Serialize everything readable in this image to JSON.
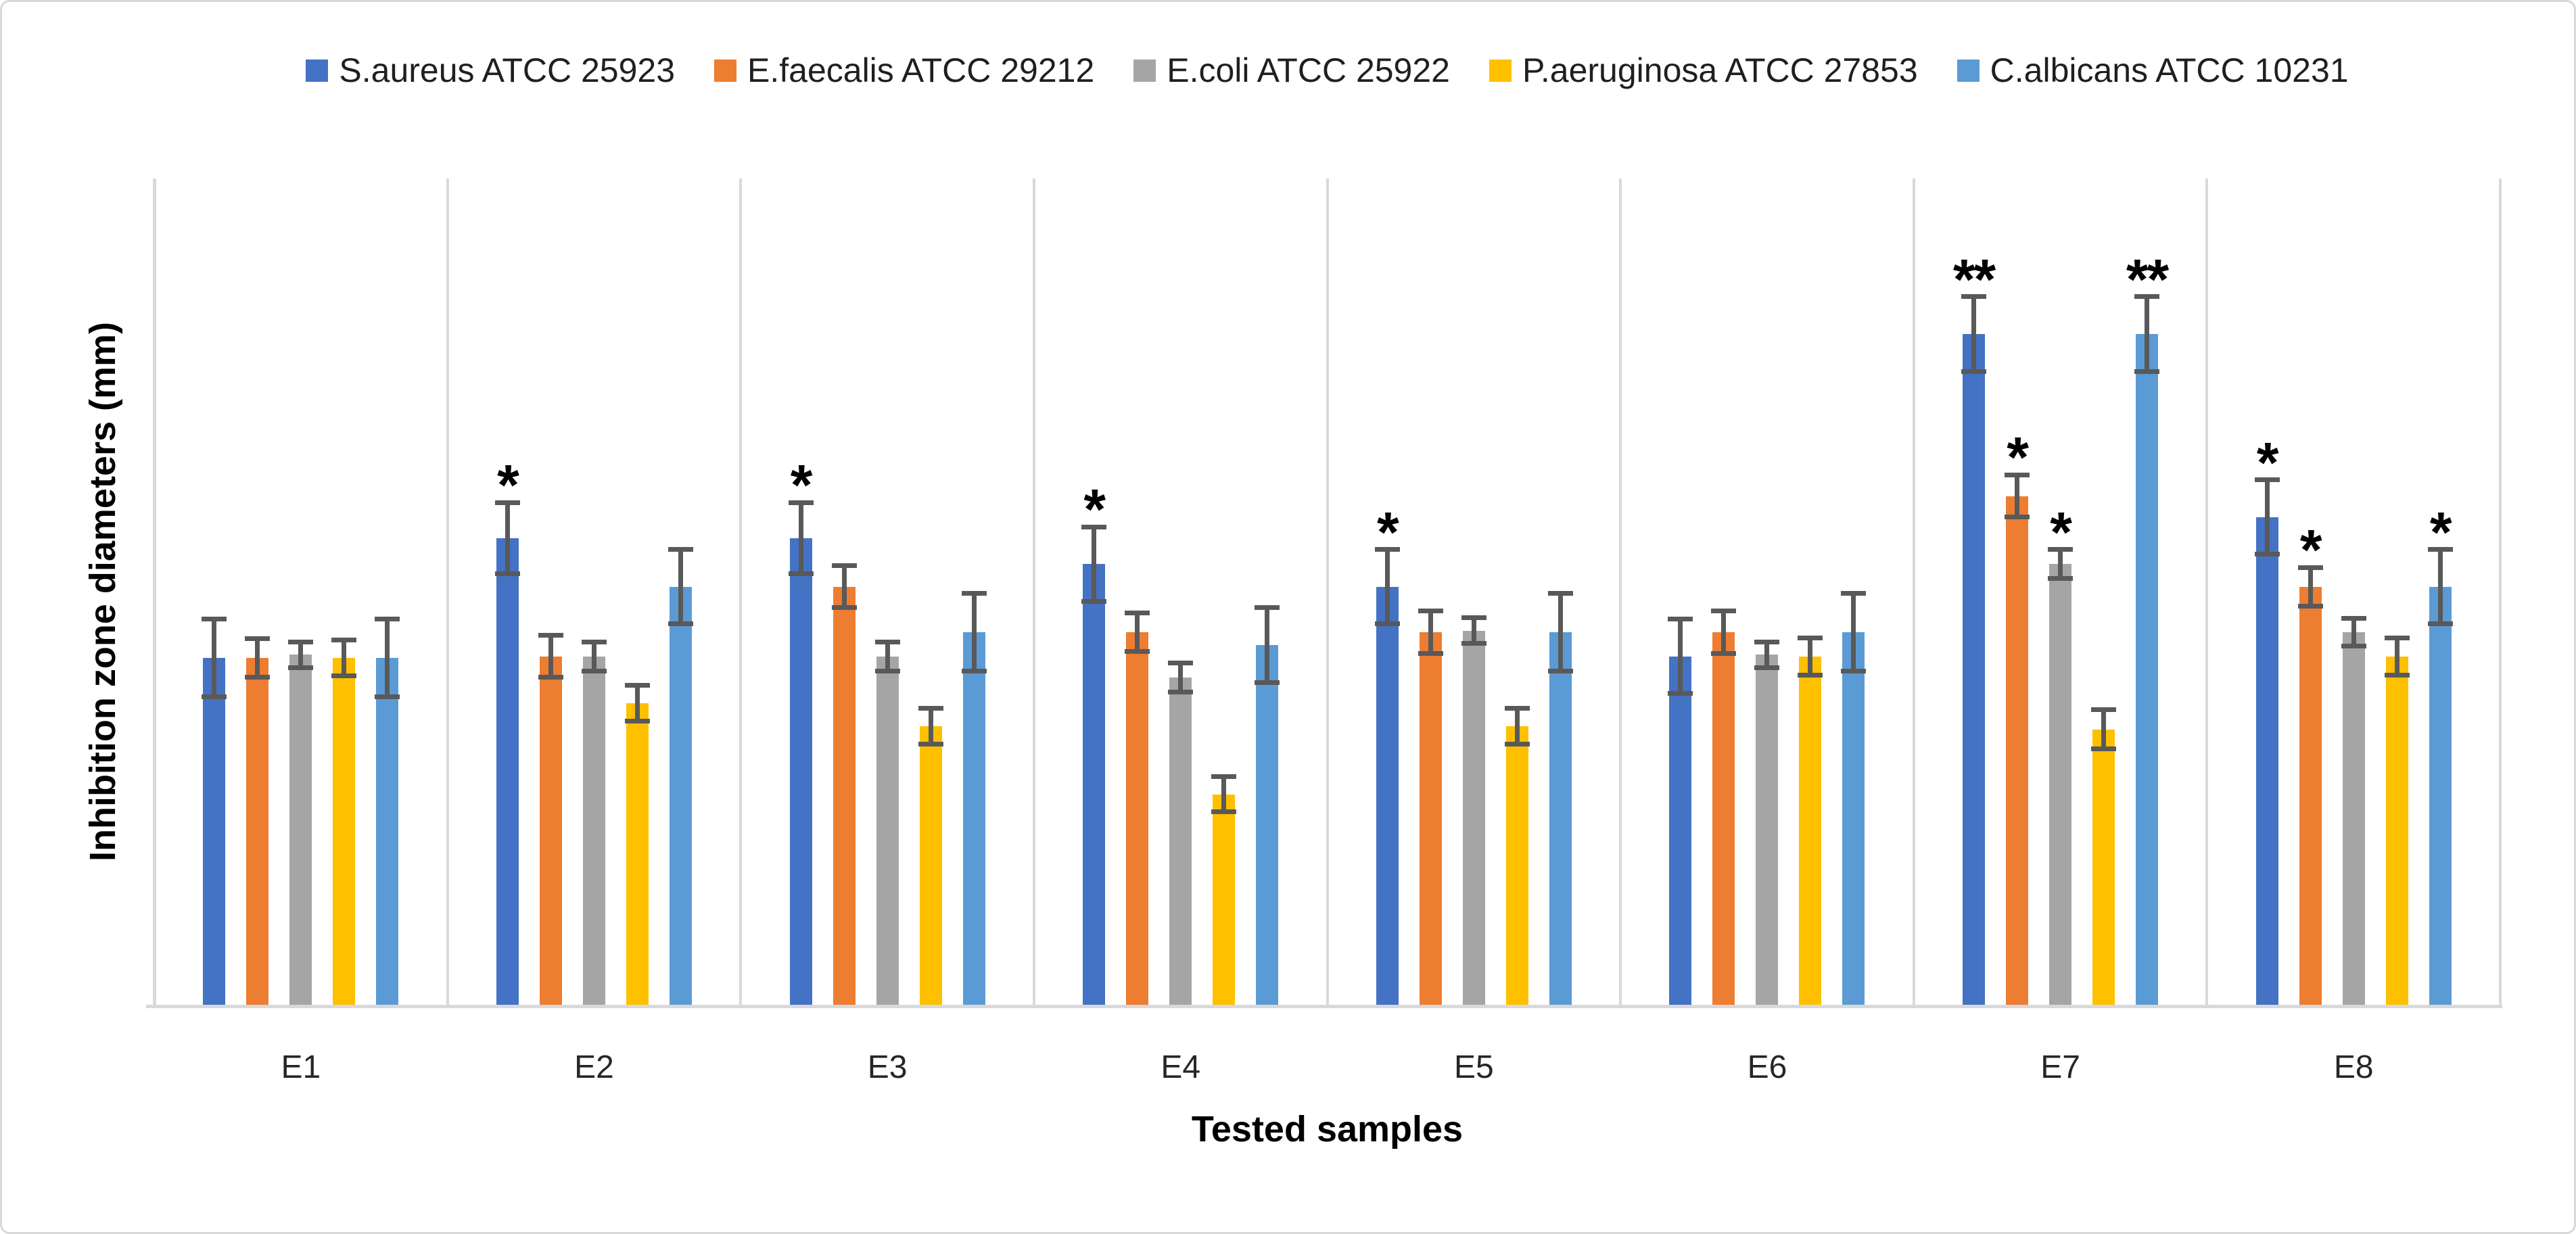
{
  "figure": {
    "background": "#FFFFFF",
    "border_color": "#D9D9D9"
  },
  "chart_data": {
    "type": "bar",
    "title": "",
    "xlabel": "Tested samples",
    "ylabel": "Inhibition zone diameters (mm)",
    "ylim": [
      0,
      25.5
    ],
    "y_tick_labels_visible": false,
    "grid": "vertical category dividers only",
    "legend_position": "top",
    "error_bars": true,
    "error_bar_color": "#595959",
    "axis_line_color": "#D9D9D9",
    "significance_marks": [
      "*",
      "**"
    ],
    "categories": [
      "E1",
      "E2",
      "E3",
      "E4",
      "E5",
      "E6",
      "E7",
      "E8"
    ],
    "series": [
      {
        "name": "S.aureus ATCC 25923",
        "color": "#4472C4",
        "values": [
          10.7,
          14.4,
          14.4,
          13.6,
          12.9,
          10.75,
          20.7,
          15.05
        ],
        "errors": [
          1.2,
          1.1,
          1.1,
          1.15,
          1.15,
          1.15,
          1.15,
          1.15
        ],
        "sig": [
          "",
          "*",
          "*",
          "*",
          "*",
          "",
          "**",
          "*"
        ]
      },
      {
        "name": "E.faecalis ATCC 29212",
        "color": "#ED7D31",
        "values": [
          10.7,
          10.75,
          12.9,
          11.5,
          11.5,
          11.5,
          15.7,
          12.9
        ],
        "errors": [
          0.6,
          0.65,
          0.65,
          0.6,
          0.65,
          0.65,
          0.65,
          0.6
        ],
        "sig": [
          "",
          "",
          "",
          "",
          "",
          "",
          "*",
          "*"
        ]
      },
      {
        "name": "E.coli ATCC 25922",
        "color": "#A5A5A5",
        "values": [
          10.8,
          10.75,
          10.75,
          10.1,
          11.55,
          10.8,
          13.6,
          11.5
        ],
        "errors": [
          0.4,
          0.45,
          0.45,
          0.45,
          0.4,
          0.4,
          0.45,
          0.42
        ],
        "sig": [
          "",
          "",
          "",
          "",
          "",
          "",
          "*",
          ""
        ]
      },
      {
        "name": "P.aeruginosa ATCC 27853",
        "color": "#FFC000",
        "values": [
          10.7,
          9.3,
          8.6,
          6.5,
          8.6,
          10.75,
          8.5,
          10.75
        ],
        "errors": [
          0.55,
          0.55,
          0.55,
          0.55,
          0.55,
          0.57,
          0.6,
          0.57
        ],
        "sig": [
          "",
          "",
          "",
          "",
          "",
          "",
          "",
          ""
        ]
      },
      {
        "name": "C.albicans ATCC 10231",
        "color": "#5B9BD5",
        "values": [
          10.7,
          12.9,
          11.5,
          11.1,
          11.5,
          11.5,
          20.7,
          12.9
        ],
        "errors": [
          1.2,
          1.15,
          1.2,
          1.15,
          1.2,
          1.2,
          1.15,
          1.15
        ],
        "sig": [
          "",
          "",
          "",
          "",
          "",
          "",
          "**",
          "*"
        ]
      }
    ]
  }
}
